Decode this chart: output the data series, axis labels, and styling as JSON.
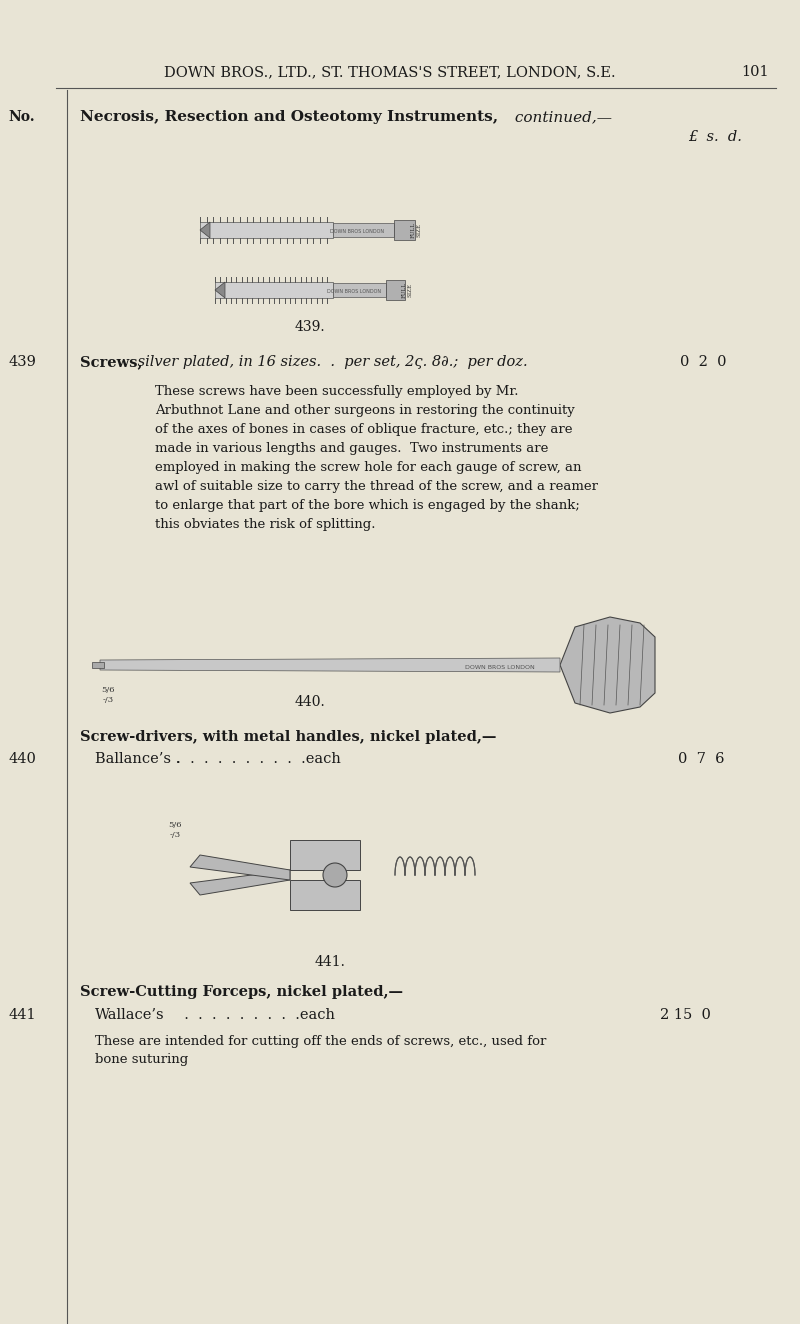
{
  "bg_color": "#e8e4d5",
  "page_bg": "#e8e4d5",
  "header_text": "DOWN BROS., LTD., ST. THOMAS'S STREET, LONDON, S.E.",
  "page_number": "101",
  "col_no_label": "No.",
  "section_title_bold": "Necrosis, Resection and Osteotomy Instruments,",
  "section_title_italic": " continued,—",
  "price_header": "£  s.  d.",
  "item_439_no": "439",
  "item_439_label": "Screws,",
  "item_439_desc": " silver plated, in 16 sizes.  .  per set, 2ς. 8∂.;  per doz.",
  "item_439_price": "0  2  0",
  "item_439_body": "These screws have been successfully employed by Mr.\nArbuthnot Lane and other surgeons in restoring the continuity\nof the axes of bones in cases of oblique fracture, etc.; they are\nmade in various lengths and gauges.  Two instruments are\nemployed in making the screw hole for each gauge of screw, an\nawl of suitable size to carry the thread of the screw, and a reamer\nto enlarge that part of the bore which is engaged by the shank;\nthis obviates the risk of splitting.",
  "item_439_fig": "439.",
  "item_440_no": "440",
  "item_440_header_bold": "Screw-drivers, with metal handles, nickel plated,—",
  "item_440_label": "Ballance’s .",
  "item_440_dots": "  .  .  .  .  .  .  .  .  .  .each",
  "item_440_price": "0  7  6",
  "item_440_fig": "440.",
  "item_441_no": "441",
  "item_441_header_bold": "Screw-Cutting Forceps, nickel plated,—",
  "item_441_label": "Wallace’s",
  "item_441_dots": "  .  .  .  .  .  .  .  .  .each",
  "item_441_price": "2 15  0",
  "item_441_body": "These are intended for cutting off the ends of screws, etc., used for\nbone suturing",
  "item_441_fig": "441.",
  "text_color": "#1a1a1a",
  "line_color": "#555555"
}
